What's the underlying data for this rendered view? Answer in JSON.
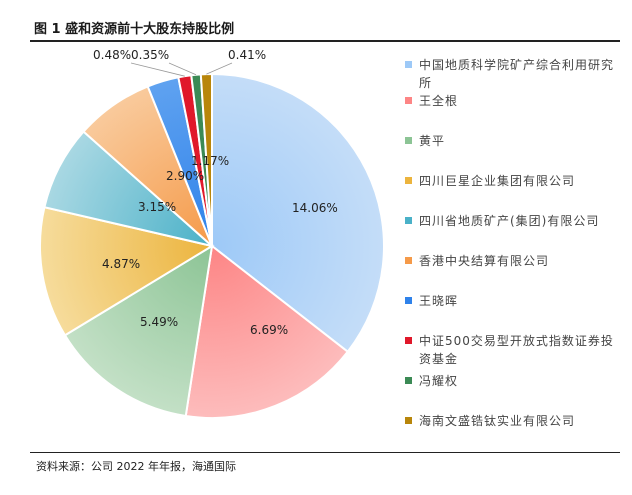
{
  "title": "图 1 盛和资源前十大股东持股比例",
  "source": "资料来源：公司 2022 年年报，海通国际",
  "chart_data": {
    "type": "pie",
    "unit": "%",
    "slices": [
      {
        "label": "中国地质科学院矿产综合利用研究所",
        "value": 14.06,
        "display": "14.06%",
        "color": "#9dc9f7",
        "color_light": "#c4ddf8"
      },
      {
        "label": "王全根",
        "value": 6.69,
        "display": "6.69%",
        "color": "#fd8585",
        "color_light": "#fdbcbc"
      },
      {
        "label": "黄平",
        "value": 5.49,
        "display": "5.49%",
        "color": "#8cc495",
        "color_light": "#c3e0c6"
      },
      {
        "label": "四川巨星企业集团有限公司",
        "value": 4.87,
        "display": "4.87%",
        "color": "#ecb43d",
        "color_light": "#f6dc9c"
      },
      {
        "label": "四川省地质矿产(集团)有限公司",
        "value": 3.15,
        "display": "3.15%",
        "color": "#4ab1c8",
        "color_light": "#a9d8e3"
      },
      {
        "label": "香港中央结算有限公司",
        "value": 2.9,
        "display": "2.90%",
        "color": "#f59a49",
        "color_light": "#f9ca9c"
      },
      {
        "label": "王晓晖",
        "value": 1.17,
        "display": "1.17%",
        "color": "#2f82ea",
        "color_light": "#5fa2f0"
      },
      {
        "label": "中证500交易型开放式指数证券投资基金",
        "value": 0.48,
        "display": "0.48%",
        "color": "#e0182a",
        "color_light": "#e0182a"
      },
      {
        "label": "冯耀权",
        "value": 0.35,
        "display": "0.35%",
        "color": "#3b8a55",
        "color_light": "#3b8a55"
      },
      {
        "label": "海南文盛锆钛实业有限公司",
        "value": 0.41,
        "display": "0.41%",
        "color": "#b8860b",
        "color_light": "#b8860b"
      }
    ]
  }
}
